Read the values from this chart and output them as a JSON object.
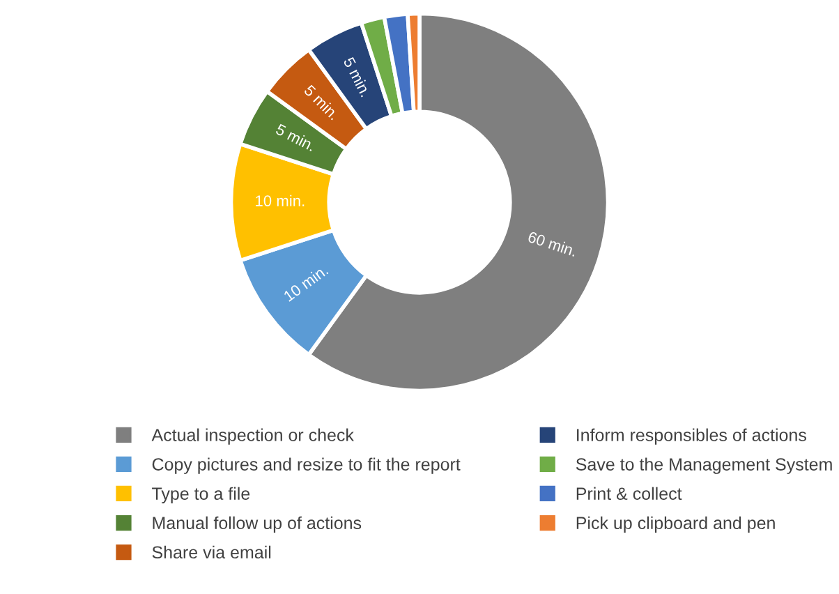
{
  "chart_data": {
    "type": "donut",
    "categories": [
      "Actual inspection or check",
      "Copy pictures and resize to fit the report",
      "Type to a file",
      "Manual follow up of actions",
      "Share via email",
      "Inform responsibles of actions",
      "Save to the Management System",
      "Print & collect",
      "Pick up clipboard and pen"
    ],
    "values": [
      60,
      10,
      10,
      5,
      5,
      5,
      2,
      2,
      1
    ],
    "colors": [
      "#7f7f7f",
      "#5b9bd5",
      "#ffc000",
      "#548235",
      "#c55a11",
      "#264478",
      "#70ad47",
      "#4472c4",
      "#ed7d31"
    ],
    "value_labels": [
      "60 min.",
      "10 min.",
      "10 min.",
      "5 min.",
      "5 min.",
      "5 min.",
      null,
      null,
      null
    ],
    "legend": "bottom"
  }
}
